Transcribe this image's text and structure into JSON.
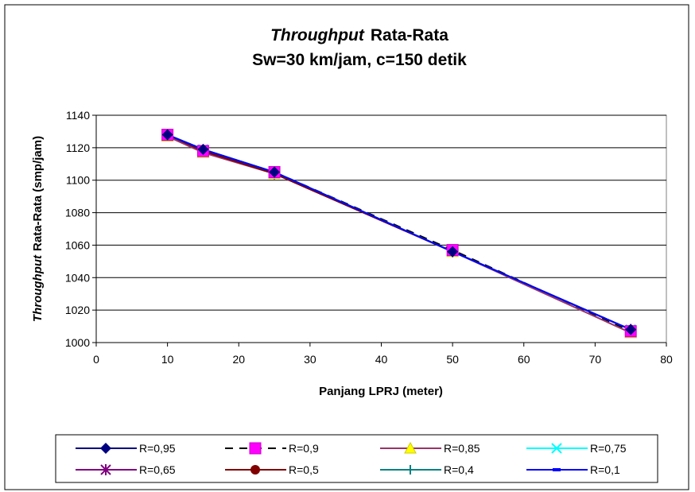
{
  "chart_data": {
    "type": "line",
    "title_italic": "Throughput",
    "title_rest": "Rata-Rata",
    "subtitle": "Sw=30 km/jam, c=150 detik",
    "xlabel": "Panjang LPRJ (meter)",
    "ylabel_italic": "Throughput",
    "ylabel_rest": "Rata-Rata (smp/jam)",
    "xlim": [
      0,
      80
    ],
    "ylim": [
      1000,
      1140
    ],
    "x_ticks": [
      "0",
      "10",
      "20",
      "30",
      "40",
      "50",
      "60",
      "70",
      "80"
    ],
    "y_ticks": [
      "1000",
      "1020",
      "1040",
      "1060",
      "1080",
      "1100",
      "1120",
      "1140"
    ],
    "grid": "horizontal",
    "legend_position": "bottom",
    "x": [
      10,
      15,
      25,
      50,
      75
    ],
    "series": [
      {
        "name": "R=0,95",
        "values": [
          1128,
          1119,
          1105,
          1056,
          1008
        ],
        "color": "#000080",
        "marker": "diamond",
        "dash": "solid"
      },
      {
        "name": "R=0,9",
        "values": [
          1128,
          1118,
          1105,
          1057,
          1007
        ],
        "color": "#000000",
        "marker": "square-magenta",
        "dash": "dashed"
      },
      {
        "name": "R=0,85",
        "values": [
          1127,
          1117,
          1104,
          1056,
          1006
        ],
        "color": "#993366",
        "marker": "triangle",
        "dash": "solid"
      },
      {
        "name": "R=0,75",
        "values": [
          1128,
          1119,
          1105,
          1056,
          1008
        ],
        "color": "#00FFFF",
        "marker": "x",
        "dash": "solid"
      },
      {
        "name": "R=0,65",
        "values": [
          1128,
          1118,
          1104,
          1056,
          1008
        ],
        "color": "#800080",
        "marker": "star",
        "dash": "solid"
      },
      {
        "name": "R=0,5",
        "values": [
          1128,
          1118,
          1104,
          1056,
          1008
        ],
        "color": "#800000",
        "marker": "circle",
        "dash": "solid"
      },
      {
        "name": "R=0,4",
        "values": [
          1128,
          1119,
          1105,
          1056,
          1008
        ],
        "color": "#008080",
        "marker": "plus",
        "dash": "solid"
      },
      {
        "name": "R=0,1",
        "values": [
          1128,
          1119,
          1105,
          1056,
          1008
        ],
        "color": "#0000FF",
        "marker": "dash",
        "dash": "solid"
      }
    ]
  }
}
